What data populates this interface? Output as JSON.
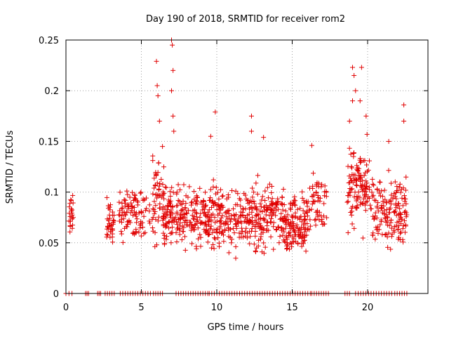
{
  "chart_data": {
    "type": "scatter",
    "title": "Day 190 of 2018, SRMTID for receiver rom2",
    "xlabel": "GPS time / hours",
    "ylabel": "SRMTID / TECUs",
    "xlim": [
      0,
      24
    ],
    "ylim": [
      0,
      0.25
    ],
    "xticks": [
      0,
      5,
      10,
      15,
      20
    ],
    "yticks": [
      0,
      0.05,
      0.1,
      0.15,
      0.2,
      0.25
    ],
    "xtick_labels": [
      "0",
      "5",
      "10",
      "15",
      "20"
    ],
    "ytick_labels": [
      "0",
      "0.05",
      "0.1",
      "0.15",
      "0.2",
      "0.25"
    ],
    "grid": true,
    "marker": "+",
    "marker_color": "#e00000",
    "series": [
      {
        "name": "SRMTID",
        "clusters": [
          {
            "x": [
              0.2,
              0.5
            ],
            "y": [
              0.045,
              0.11
            ],
            "n": 24
          },
          {
            "x": [
              2.7,
              3.2
            ],
            "y": [
              0.035,
              0.105
            ],
            "n": 40
          },
          {
            "x": [
              3.5,
              5.6
            ],
            "y": [
              0.045,
              0.115
            ],
            "n": 100
          },
          {
            "x": [
              5.7,
              6.5
            ],
            "y": [
              0.04,
              0.15
            ],
            "n": 60
          },
          {
            "x": [
              6.4,
              7.5
            ],
            "y": [
              0.035,
              0.12
            ],
            "n": 80
          },
          {
            "x": [
              7.5,
              9.3
            ],
            "y": [
              0.035,
              0.115
            ],
            "n": 120
          },
          {
            "x": [
              9.3,
              12.0
            ],
            "y": [
              0.03,
              0.12
            ],
            "n": 180
          },
          {
            "x": [
              12.0,
              14.5
            ],
            "y": [
              0.03,
              0.12
            ],
            "n": 180
          },
          {
            "x": [
              14.5,
              16.3
            ],
            "y": [
              0.03,
              0.11
            ],
            "n": 140
          },
          {
            "x": [
              16.3,
              17.3
            ],
            "y": [
              0.045,
              0.13
            ],
            "n": 50
          },
          {
            "x": [
              18.6,
              20.2
            ],
            "y": [
              0.05,
              0.16
            ],
            "n": 120
          },
          {
            "x": [
              20.2,
              22.6
            ],
            "y": [
              0.03,
              0.13
            ],
            "n": 160
          }
        ],
        "extra_points": [
          {
            "x": 6.0,
            "y": 0.229
          },
          {
            "x": 6.05,
            "y": 0.205
          },
          {
            "x": 6.1,
            "y": 0.195
          },
          {
            "x": 7.0,
            "y": 0.25
          },
          {
            "x": 7.05,
            "y": 0.245
          },
          {
            "x": 7.1,
            "y": 0.22
          },
          {
            "x": 7.0,
            "y": 0.2
          },
          {
            "x": 7.1,
            "y": 0.175
          },
          {
            "x": 7.15,
            "y": 0.16
          },
          {
            "x": 6.2,
            "y": 0.17
          },
          {
            "x": 6.4,
            "y": 0.145
          },
          {
            "x": 9.9,
            "y": 0.179
          },
          {
            "x": 9.6,
            "y": 0.155
          },
          {
            "x": 12.3,
            "y": 0.175
          },
          {
            "x": 12.3,
            "y": 0.16
          },
          {
            "x": 13.1,
            "y": 0.154
          },
          {
            "x": 16.3,
            "y": 0.146
          },
          {
            "x": 19.0,
            "y": 0.223
          },
          {
            "x": 19.1,
            "y": 0.215
          },
          {
            "x": 19.6,
            "y": 0.223
          },
          {
            "x": 19.2,
            "y": 0.2
          },
          {
            "x": 19.0,
            "y": 0.19
          },
          {
            "x": 19.5,
            "y": 0.19
          },
          {
            "x": 19.9,
            "y": 0.175
          },
          {
            "x": 21.4,
            "y": 0.15
          },
          {
            "x": 22.4,
            "y": 0.186
          },
          {
            "x": 22.4,
            "y": 0.17
          },
          {
            "x": 20.8,
            "y": 0.11
          },
          {
            "x": 18.8,
            "y": 0.17
          }
        ],
        "zero_runs": [
          [
            0.0,
            0.4
          ],
          [
            1.3,
            1.5
          ],
          [
            2.1,
            2.3
          ],
          [
            2.6,
            3.2
          ],
          [
            3.6,
            5.6
          ],
          [
            5.8,
            6.4
          ],
          [
            7.3,
            9.4
          ],
          [
            9.5,
            16.2
          ],
          [
            16.3,
            17.4
          ],
          [
            18.5,
            18.8
          ],
          [
            19.2,
            21.6
          ],
          [
            21.8,
            22.6
          ]
        ]
      }
    ]
  }
}
